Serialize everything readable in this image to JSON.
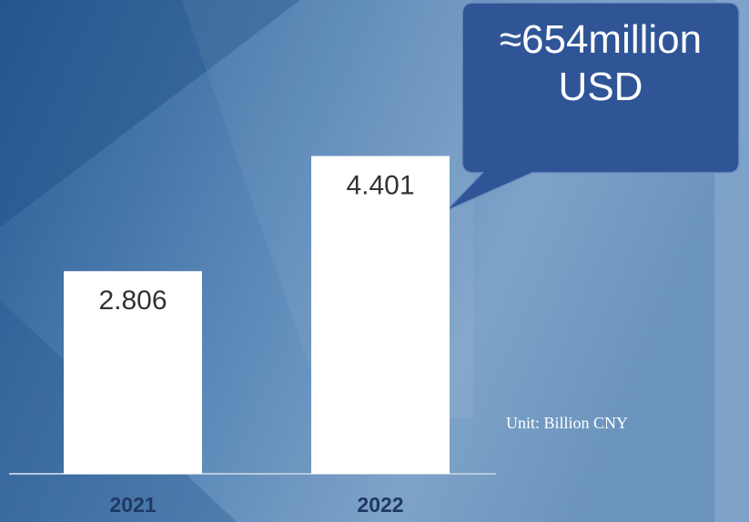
{
  "chart_data": {
    "type": "bar",
    "categories": [
      "2021",
      "2022"
    ],
    "values": [
      2.806,
      4.401
    ],
    "color": "#ffffff",
    "annotation": "≈654million USD",
    "unit_label": "Unit: Billion CNY"
  }
}
